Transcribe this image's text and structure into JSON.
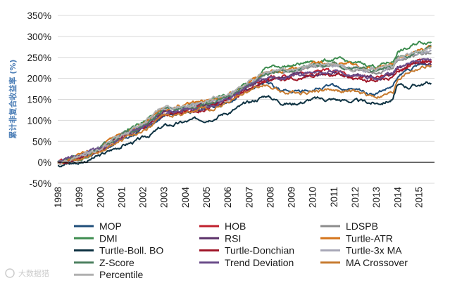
{
  "chart_data": {
    "type": "line",
    "title": "",
    "xlabel": "",
    "ylabel": "累计非复合收益率 (%)",
    "x_ticks": [
      "1998",
      "1999",
      "2000",
      "2001",
      "2002",
      "2003",
      "2004",
      "2005",
      "2006",
      "2007",
      "2008",
      "2009",
      "2010",
      "2011",
      "2012",
      "2013",
      "2014",
      "2015"
    ],
    "y_ticks": [
      "350%",
      "300%",
      "250%",
      "200%",
      "150%",
      "100%",
      "50%",
      "0%",
      "-50%"
    ],
    "ylim": [
      -50,
      350
    ],
    "xlim": [
      1998.0,
      2015.75
    ],
    "x": [
      1998.0,
      1999.0,
      2000.0,
      2001.0,
      2002.0,
      2003.0,
      2004.0,
      2005.0,
      2006.0,
      2007.0,
      2007.8,
      2008.5,
      2009.0,
      2010.0,
      2011.0,
      2012.0,
      2013.0,
      2013.8,
      2014.0,
      2014.5,
      2015.0,
      2015.6
    ],
    "series": [
      {
        "name": "MOP",
        "color": "#1f4e79",
        "values": [
          0,
          5,
          25,
          55,
          75,
          110,
          120,
          130,
          145,
          175,
          190,
          170,
          165,
          175,
          180,
          170,
          165,
          180,
          200,
          220,
          230,
          230
        ]
      },
      {
        "name": "HOB",
        "color": "#c0202e",
        "values": [
          0,
          10,
          30,
          60,
          85,
          120,
          125,
          135,
          150,
          180,
          200,
          205,
          205,
          215,
          215,
          205,
          200,
          210,
          220,
          230,
          240,
          240
        ]
      },
      {
        "name": "LDSPB",
        "color": "#8c8c8c",
        "values": [
          0,
          12,
          33,
          65,
          90,
          125,
          130,
          140,
          155,
          185,
          210,
          215,
          215,
          225,
          230,
          220,
          215,
          225,
          240,
          245,
          255,
          265
        ]
      },
      {
        "name": "DMI",
        "color": "#3d8c4f",
        "values": [
          0,
          12,
          35,
          68,
          95,
          130,
          135,
          145,
          160,
          190,
          225,
          230,
          230,
          240,
          245,
          235,
          230,
          240,
          265,
          270,
          285,
          290
        ]
      },
      {
        "name": "RSI",
        "color": "#5a3068",
        "values": [
          0,
          10,
          30,
          60,
          85,
          120,
          125,
          135,
          150,
          180,
          200,
          205,
          205,
          210,
          215,
          205,
          200,
          210,
          225,
          235,
          235,
          240
        ]
      },
      {
        "name": "Turtle-ATR",
        "color": "#d4741a",
        "values": [
          0,
          15,
          35,
          68,
          95,
          130,
          135,
          145,
          160,
          190,
          215,
          220,
          220,
          235,
          240,
          230,
          225,
          235,
          250,
          255,
          270,
          275
        ]
      },
      {
        "name": "Turtle-Boll. BO",
        "color": "#0f3343",
        "values": [
          -5,
          0,
          15,
          40,
          55,
          85,
          95,
          105,
          120,
          140,
          160,
          145,
          140,
          150,
          150,
          145,
          140,
          150,
          185,
          180,
          185,
          190
        ]
      },
      {
        "name": "Turtle-Donchian",
        "color": "#a0182a",
        "values": [
          0,
          8,
          28,
          58,
          80,
          115,
          120,
          130,
          145,
          175,
          195,
          200,
          200,
          210,
          210,
          200,
          195,
          205,
          220,
          230,
          235,
          240
        ]
      },
      {
        "name": "Turtle-3x MA",
        "color": "#a8a8b8",
        "values": [
          0,
          12,
          34,
          66,
          92,
          128,
          132,
          142,
          157,
          187,
          212,
          218,
          218,
          228,
          232,
          222,
          218,
          228,
          242,
          248,
          258,
          260
        ]
      },
      {
        "name": "Z-Score",
        "color": "#4d8060",
        "values": [
          0,
          11,
          33,
          64,
          90,
          125,
          130,
          140,
          155,
          185,
          215,
          220,
          220,
          230,
          235,
          225,
          220,
          230,
          250,
          255,
          265,
          270
        ]
      },
      {
        "name": "Trend Deviation",
        "color": "#6b4d8a",
        "values": [
          0,
          9,
          29,
          59,
          84,
          119,
          124,
          134,
          149,
          179,
          199,
          204,
          204,
          212,
          214,
          206,
          202,
          212,
          228,
          236,
          240,
          245
        ]
      },
      {
        "name": "MA Crossover",
        "color": "#c77b30",
        "values": [
          0,
          8,
          26,
          54,
          76,
          108,
          118,
          128,
          143,
          172,
          185,
          170,
          165,
          172,
          175,
          165,
          158,
          165,
          200,
          215,
          225,
          230
        ]
      },
      {
        "name": "Percentile",
        "color": "#b0b0b0",
        "values": [
          0,
          13,
          35,
          67,
          93,
          129,
          134,
          144,
          159,
          189,
          215,
          221,
          221,
          231,
          236,
          226,
          222,
          232,
          248,
          252,
          262,
          268
        ]
      }
    ]
  },
  "watermark": "大数据猎"
}
